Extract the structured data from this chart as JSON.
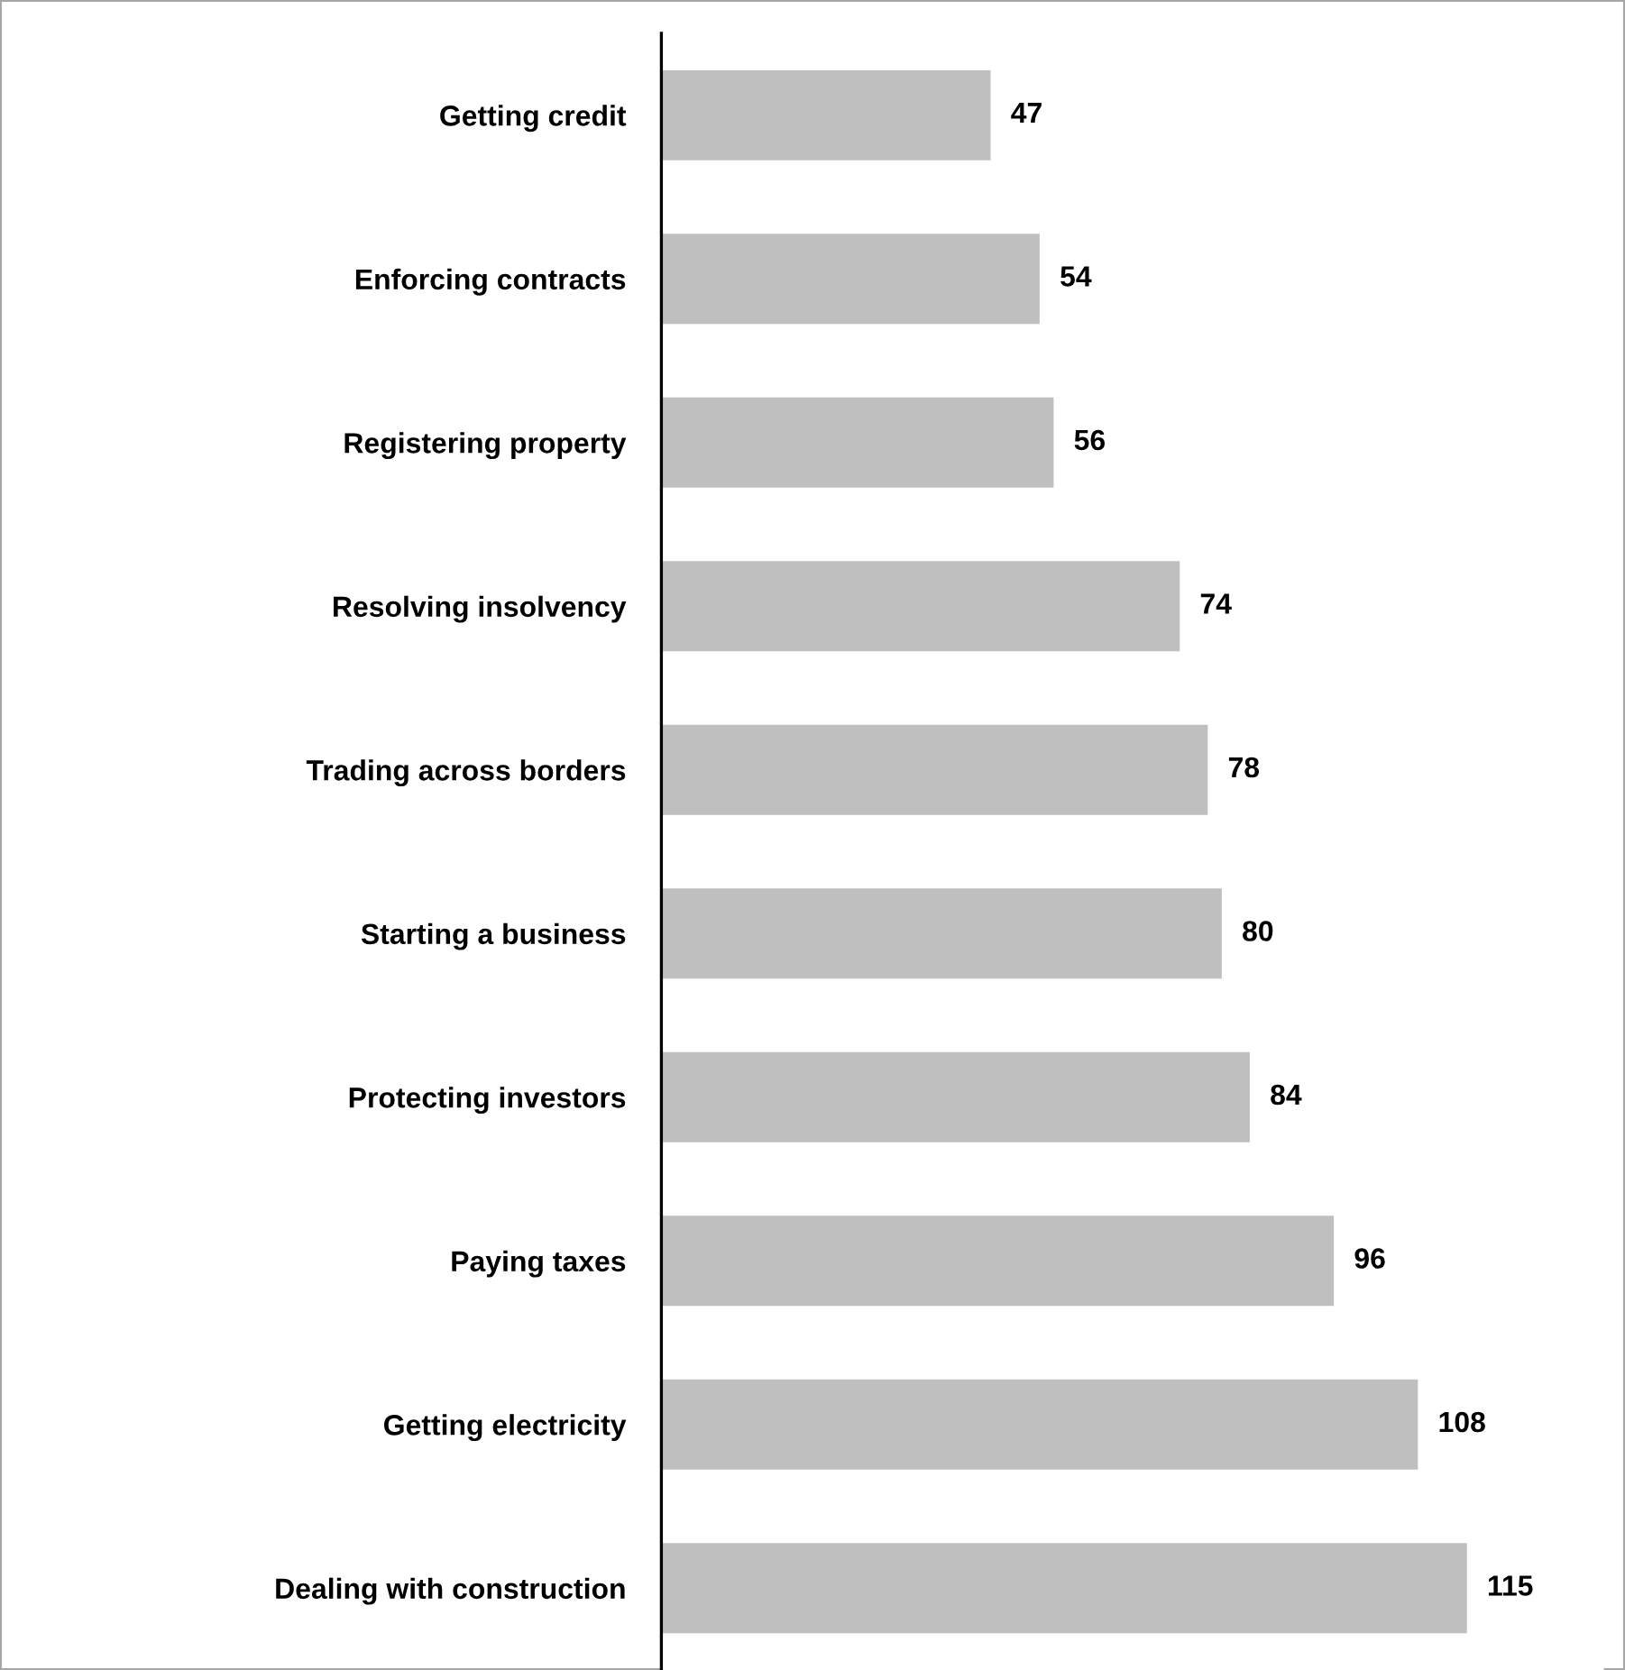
{
  "chart_data": {
    "type": "bar",
    "orientation": "horizontal",
    "data_labels": true,
    "categories": [
      "Getting credit",
      "Enforcing contracts",
      "Registering property",
      "Resolving insolvency",
      "Trading across borders",
      "Starting a business",
      "Protecting investors",
      "Paying taxes",
      "Getting electricity",
      "Dealing with construction"
    ],
    "values": [
      47,
      54,
      56,
      74,
      78,
      80,
      84,
      96,
      108,
      115
    ],
    "color": "#bfbfbf"
  }
}
